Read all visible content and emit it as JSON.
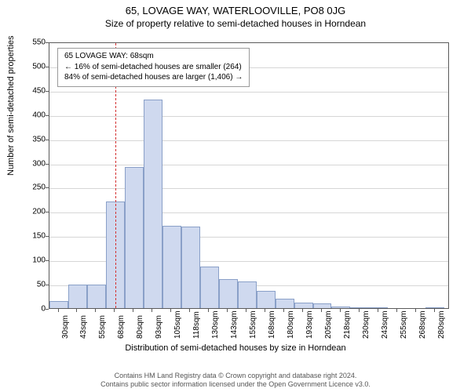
{
  "title_main": "65, LOVAGE WAY, WATERLOOVILLE, PO8 0JG",
  "title_sub": "Size of property relative to semi-detached houses in Horndean",
  "y_axis_label": "Number of semi-detached properties",
  "x_axis_title": "Distribution of semi-detached houses by size in Horndean",
  "chart": {
    "type": "histogram",
    "background_color": "#ffffff",
    "border_color": "#5a5a5a",
    "grid_color": "#d6d6d6",
    "bar_fill": "#cfd9ef",
    "bar_stroke": "#8aa0c8",
    "marker_color": "#d43030",
    "marker_x": 68,
    "ylim": [
      0,
      550
    ],
    "yticks": [
      0,
      50,
      100,
      150,
      200,
      250,
      300,
      350,
      400,
      450,
      500,
      550
    ],
    "xlim": [
      24,
      290
    ],
    "xtick_step": 12.5,
    "xtick_start": 30,
    "xtick_count": 21,
    "xtick_suffix": "sqm",
    "bar_bin_width": 12.5,
    "bars": [
      {
        "x0": 24,
        "v": 15
      },
      {
        "x0": 36.5,
        "v": 48
      },
      {
        "x0": 49,
        "v": 48
      },
      {
        "x0": 61.5,
        "v": 220
      },
      {
        "x0": 74,
        "v": 292
      },
      {
        "x0": 86.5,
        "v": 430
      },
      {
        "x0": 99,
        "v": 170
      },
      {
        "x0": 111.5,
        "v": 168
      },
      {
        "x0": 124,
        "v": 85
      },
      {
        "x0": 136.5,
        "v": 60
      },
      {
        "x0": 149,
        "v": 55
      },
      {
        "x0": 161.5,
        "v": 35
      },
      {
        "x0": 174,
        "v": 20
      },
      {
        "x0": 186.5,
        "v": 12
      },
      {
        "x0": 199,
        "v": 10
      },
      {
        "x0": 211.5,
        "v": 3
      },
      {
        "x0": 224,
        "v": 2
      },
      {
        "x0": 236.5,
        "v": 2
      },
      {
        "x0": 249,
        "v": 0
      },
      {
        "x0": 261.5,
        "v": 0
      },
      {
        "x0": 274,
        "v": 2
      }
    ]
  },
  "info_box": {
    "line1": "65 LOVAGE WAY: 68sqm",
    "line2": "← 16% of semi-detached houses are smaller (264)",
    "line3": "84% of semi-detached houses are larger (1,406) →"
  },
  "footer": {
    "line1": "Contains HM Land Registry data © Crown copyright and database right 2024.",
    "line2": "Contains public sector information licensed under the Open Government Licence v3.0."
  }
}
